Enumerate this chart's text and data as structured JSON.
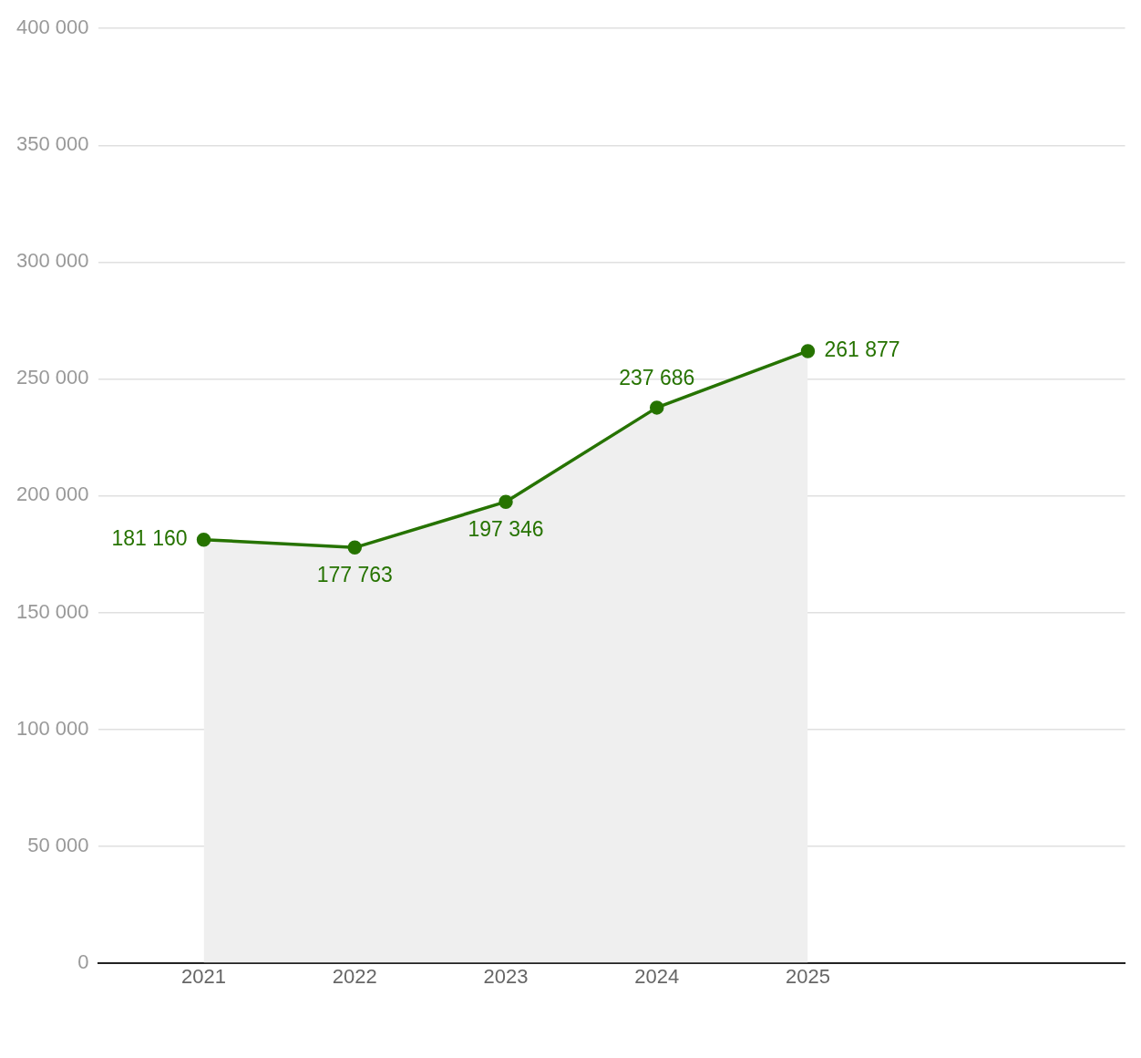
{
  "chart_data": {
    "type": "area",
    "x": [
      2021,
      2022,
      2023,
      2024,
      2025
    ],
    "series": [
      {
        "color": "#267300",
        "values": [
          181160,
          177763,
          197346,
          237686,
          261877
        ],
        "value_labels": [
          "181 160",
          "177 763",
          "197 346",
          "237 686",
          "261 877"
        ]
      }
    ],
    "xlim": [
      2020.3,
      2027.1
    ],
    "xticks": [
      2021,
      2022,
      2023,
      2024,
      2025
    ],
    "ylim": [
      0,
      400000
    ],
    "yticks": [
      {
        "value": 0,
        "label": "0"
      },
      {
        "value": 50000,
        "label": "50 000"
      },
      {
        "value": 100000,
        "label": "100 000"
      },
      {
        "value": 150000,
        "label": "150 000"
      },
      {
        "value": 200000,
        "label": "200 000"
      },
      {
        "value": 250000,
        "label": "250 000"
      },
      {
        "value": 300000,
        "label": "300 000"
      },
      {
        "value": 350000,
        "label": "350 000"
      },
      {
        "value": 400000,
        "label": "400 000"
      }
    ],
    "grid": "y",
    "legend": false,
    "marker": "circle",
    "line_style": "solid"
  }
}
